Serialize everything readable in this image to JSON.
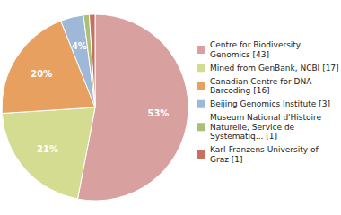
{
  "chart_data": {
    "type": "pie",
    "categories": [
      "Centre for Biodiversity\nGenomics [43]",
      "Mined from GenBank, NCBI [17]",
      "Canadian Centre for DNA\nBarcoding [16]",
      "Beijing Genomics Institute [3]",
      "Museum National d'Histoire\nNaturelle, Service de\nSystematiq... [1]",
      "Karl-Franzens University of\nGraz [1]"
    ],
    "values": [
      53,
      21,
      20,
      4,
      1,
      1
    ],
    "value_labels": [
      "53%",
      "21%",
      "20%",
      "4%",
      null,
      null
    ],
    "colors": [
      "#d9a0a0",
      "#d4dc91",
      "#e8a060",
      "#a0b8d8",
      "#a8c078",
      "#c87060"
    ],
    "data_labels": true,
    "legend": "right"
  }
}
